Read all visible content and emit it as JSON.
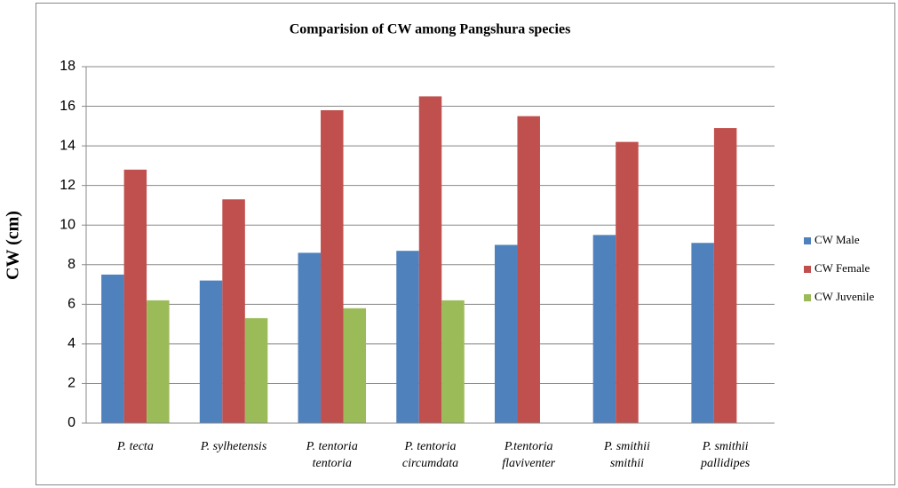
{
  "chart_data": {
    "type": "bar",
    "title": "Comparision of CW among Pangshura species",
    "y_label": "CW (cm)",
    "categories": [
      [
        "P. tecta"
      ],
      [
        "P. sylhetensis"
      ],
      [
        "P. tentoria",
        "tentoria"
      ],
      [
        "P. tentoria",
        "circumdata"
      ],
      [
        "P.tentoria",
        "flaviventer"
      ],
      [
        "P. smithii",
        "smithii"
      ],
      [
        "P. smithii",
        "pallidipes"
      ]
    ],
    "series": [
      {
        "name": "CW Male",
        "color": "#4f81bd",
        "values": [
          7.5,
          7.2,
          8.6,
          8.7,
          9.0,
          9.5,
          9.1
        ]
      },
      {
        "name": "CW Female",
        "color": "#c0504d",
        "values": [
          12.8,
          11.3,
          15.8,
          16.5,
          15.5,
          14.2,
          14.9
        ]
      },
      {
        "name": "CW Juvenile",
        "color": "#9bbb59",
        "values": [
          6.2,
          5.3,
          5.8,
          6.2,
          null,
          null,
          null
        ]
      }
    ],
    "ylim": [
      0,
      18
    ],
    "yticks": [
      0,
      2,
      4,
      6,
      8,
      10,
      12,
      14,
      16,
      18
    ],
    "grid": true,
    "legend": "right"
  }
}
